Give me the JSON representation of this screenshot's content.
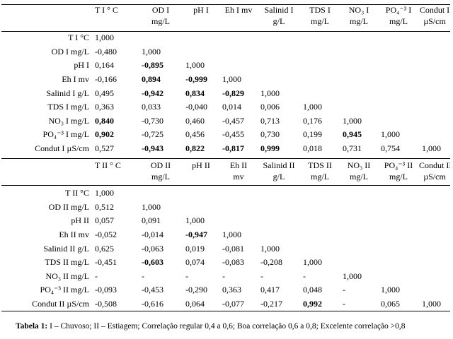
{
  "table1": {
    "headers": [
      [
        "T I ° C"
      ],
      [
        "OD I",
        "mg/L"
      ],
      [
        "pH I"
      ],
      [
        "Eh I mv"
      ],
      [
        "Salinid I",
        "g/L"
      ],
      [
        "TDS I",
        "mg/L"
      ],
      [
        "NO₃ I",
        "mg/L"
      ],
      [
        "PO₄⁻³ I",
        "mg/L"
      ],
      [
        "Condut I",
        "µS/cm"
      ]
    ],
    "rows": [
      {
        "label": "T I °C",
        "cells": [
          "1,000",
          "",
          "",
          "",
          "",
          "",
          "",
          "",
          ""
        ]
      },
      {
        "label": "OD I mg/L",
        "cells": [
          "-0,480",
          "1,000",
          "",
          "",
          "",
          "",
          "",
          "",
          ""
        ]
      },
      {
        "label": "pH I",
        "cells": [
          "0,164",
          "-0,895",
          "1,000",
          "",
          "",
          "",
          "",
          "",
          ""
        ]
      },
      {
        "label": "Eh I mv",
        "cells": [
          "-0,166",
          "0,894",
          "-0,999",
          "1,000",
          "",
          "",
          "",
          "",
          ""
        ]
      },
      {
        "label": "Salinid I g/L",
        "cells": [
          "0,495",
          "-0,942",
          "0,834",
          "-0,829",
          "1,000",
          "",
          "",
          "",
          ""
        ]
      },
      {
        "label": "TDS I mg/L",
        "cells": [
          "0,363",
          "0,033",
          "-0,040",
          "0,014",
          "0,006",
          "1,000",
          "",
          "",
          ""
        ]
      },
      {
        "label": "NO₃ I mg/L",
        "cells": [
          "0,840",
          "-0,730",
          "0,460",
          "-0,457",
          "0,713",
          "0,176",
          "1,000",
          "",
          ""
        ]
      },
      {
        "label": "PO₄⁻³ I mg/L",
        "cells": [
          "0,902",
          "-0,725",
          "0,456",
          "-0,455",
          "0,730",
          "0,199",
          "0,945",
          "1,000",
          ""
        ]
      },
      {
        "label": "Condut I µS/cm",
        "cells": [
          "0,527",
          "-0,943",
          "0,822",
          "-0,817",
          "0,999",
          "0,018",
          "0,731",
          "0,754",
          "1,000"
        ]
      }
    ],
    "bold_cells": [
      [
        2,
        1
      ],
      [
        3,
        1
      ],
      [
        3,
        2
      ],
      [
        4,
        1
      ],
      [
        4,
        2
      ],
      [
        4,
        3
      ],
      [
        6,
        0
      ],
      [
        7,
        0
      ],
      [
        7,
        6
      ],
      [
        8,
        1
      ],
      [
        8,
        2
      ],
      [
        8,
        3
      ],
      [
        8,
        4
      ]
    ]
  },
  "table2": {
    "headers": [
      [
        "T II ° C"
      ],
      [
        "OD II",
        "mg/L"
      ],
      [
        "pH II"
      ],
      [
        "Eh II",
        "mv"
      ],
      [
        "Salinid II",
        "g/L"
      ],
      [
        "TDS II",
        "mg/L"
      ],
      [
        "NO₃ II",
        "mg/L"
      ],
      [
        "PO₄⁻³ II",
        "mg/L"
      ],
      [
        "Condut II",
        "µS/cm"
      ]
    ],
    "rows": [
      {
        "label": "T II °C",
        "cells": [
          "1,000",
          "",
          "",
          "",
          "",
          "",
          "",
          "",
          ""
        ]
      },
      {
        "label": "OD II mg/L",
        "cells": [
          "0,512",
          "1,000",
          "",
          "",
          "",
          "",
          "",
          "",
          ""
        ]
      },
      {
        "label": "pH II",
        "cells": [
          "0,057",
          "0,091",
          "1,000",
          "",
          "",
          "",
          "",
          "",
          ""
        ]
      },
      {
        "label": "Eh II mv",
        "cells": [
          "-0,052",
          "-0,014",
          "-0,947",
          "1,000",
          "",
          "",
          "",
          "",
          ""
        ]
      },
      {
        "label": "Salinid II g/L",
        "cells": [
          "0,625",
          "-0,063",
          "0,019",
          "-0,081",
          "1,000",
          "",
          "",
          "",
          ""
        ]
      },
      {
        "label": "TDS II mg/L",
        "cells": [
          "-0,451",
          "-0,603",
          "0,074",
          "-0,083",
          "-0,208",
          "1,000",
          "",
          "",
          ""
        ]
      },
      {
        "label": "NO₃ II mg/L",
        "cells": [
          "-",
          "-",
          "-",
          "-",
          "-",
          "-",
          "1,000",
          "",
          ""
        ]
      },
      {
        "label": "PO₄⁻³ II mg/L",
        "cells": [
          "-0,093",
          "-0,453",
          "-0,290",
          "0,363",
          "0,417",
          "0,048",
          "-",
          "1,000",
          ""
        ]
      },
      {
        "label": "Condut II µS/cm",
        "cells": [
          "-0,508",
          "-0,616",
          "0,064",
          "-0,077",
          "-0,217",
          "0,992",
          "-",
          "0,065",
          "1,000"
        ]
      }
    ],
    "bold_cells": [
      [
        3,
        2
      ],
      [
        5,
        1
      ],
      [
        8,
        5
      ]
    ]
  },
  "caption": {
    "label": "Tabela 1:",
    "text": " I – Chuvoso; II – Estiagem; Correlação regular 0,4 a 0,6; Boa correlação 0,6 a 0,8; Excelente correlação >0,8"
  }
}
